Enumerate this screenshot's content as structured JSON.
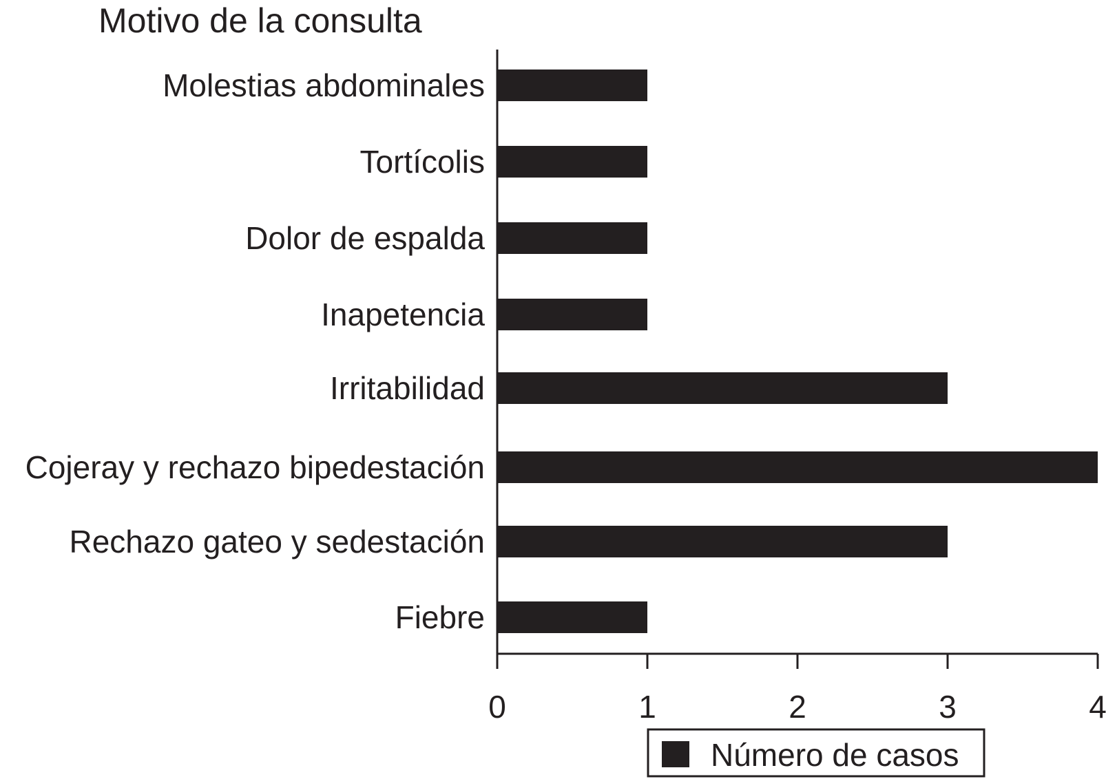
{
  "chart_data": {
    "type": "bar",
    "orientation": "horizontal",
    "title": "Motivo de la consulta",
    "xlabel": "",
    "ylabel": "",
    "categories": [
      "Molestias abdominales",
      "Tortícolis",
      "Dolor de espalda",
      "Inapetencia",
      "Irritabilidad",
      "Cojeray y rechazo bipedestación",
      "Rechazo gateo y sedestación",
      "Fiebre"
    ],
    "series": [
      {
        "name": "Número de casos",
        "values": [
          1,
          1,
          1,
          1,
          3,
          4,
          3,
          1
        ]
      }
    ],
    "xlim": [
      0,
      4
    ],
    "x_ticks": [
      "0",
      "1",
      "2",
      "3",
      "4"
    ],
    "grid": false,
    "legend": "bottom-right",
    "colors": {
      "bar": "#231f20",
      "axis": "#231f20",
      "text": "#231f20",
      "background": "#ffffff"
    }
  }
}
